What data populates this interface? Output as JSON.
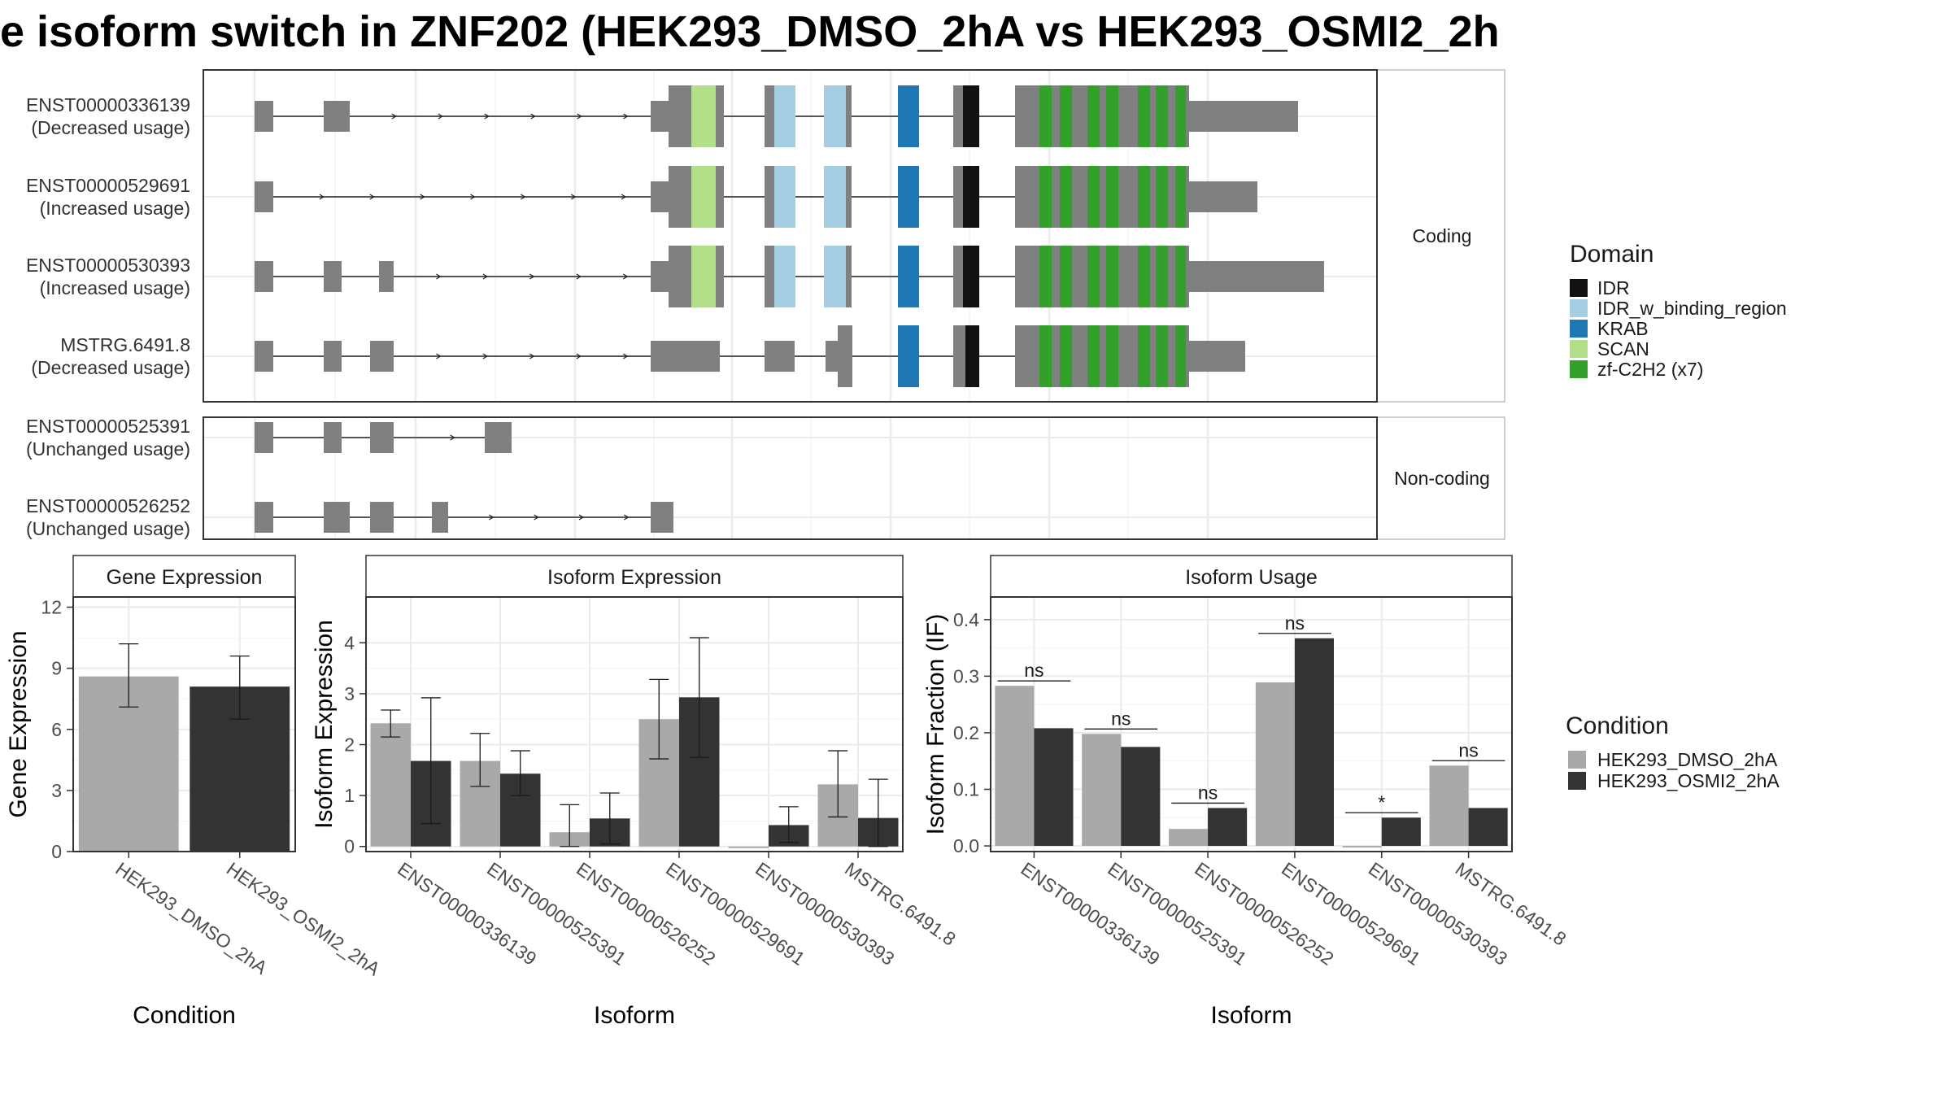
{
  "title": "e isoform switch in ZNF202 (HEK293_DMSO_2hA vs HEK293_OSMI2_2h",
  "structure": {
    "facets": [
      {
        "label": "Coding",
        "transcripts": [
          {
            "id": "ENST00000336139",
            "usage": "(Decreased usage)"
          },
          {
            "id": "ENST00000529691",
            "usage": "(Increased usage)"
          },
          {
            "id": "ENST00000530393",
            "usage": "(Increased usage)"
          },
          {
            "id": "MSTRG.6491.8",
            "usage": "(Decreased usage)"
          }
        ]
      },
      {
        "label": "Non-coding",
        "transcripts": [
          {
            "id": "ENST00000525391",
            "usage": "(Unchanged usage)"
          },
          {
            "id": "ENST00000526252",
            "usage": "(Unchanged usage)"
          }
        ]
      }
    ],
    "domain_legend_title": "Domain",
    "domains": [
      {
        "name": "IDR",
        "color": "#111111"
      },
      {
        "name": "IDR_w_binding_region",
        "color": "#a6cee3"
      },
      {
        "name": "KRAB",
        "color": "#1f78b4"
      },
      {
        "name": "SCAN",
        "color": "#b2df8a"
      },
      {
        "name": "zf-C2H2 (x7)",
        "color": "#33a02c"
      }
    ]
  },
  "colors": {
    "exon": "#808080",
    "condition_1": "#a9a9a9",
    "condition_2": "#333333"
  },
  "chart_data": [
    {
      "type": "bar",
      "title": "Gene Expression",
      "xlabel": "Condition",
      "ylabel": "Gene Expression",
      "ylim": [
        0,
        12.5
      ],
      "yticks": [
        0,
        3,
        6,
        9,
        12
      ],
      "categories": [
        "HEK293_DMSO_2hA",
        "HEK293_OSMI2_2hA"
      ],
      "values": [
        8.6,
        8.1
      ],
      "error_low": [
        7.1,
        6.5
      ],
      "error_high": [
        10.2,
        9.6
      ]
    },
    {
      "type": "bar",
      "title": "Isoform Expression",
      "xlabel": "Isoform",
      "ylabel": "Isoform Expression",
      "ylim": [
        -0.1,
        4.9
      ],
      "yticks": [
        0,
        1,
        2,
        3,
        4
      ],
      "categories": [
        "ENST00000336139",
        "ENST00000525391",
        "ENST00000526252",
        "ENST00000529691",
        "ENST00000530393",
        "MSTRG.6491.8"
      ],
      "series": [
        {
          "name": "HEK293_DMSO_2hA",
          "values": [
            2.42,
            1.68,
            0.28,
            2.5,
            0.0,
            1.22
          ],
          "error_low": [
            2.15,
            1.18,
            0.0,
            1.72,
            0.0,
            0.58
          ],
          "error_high": [
            2.68,
            2.22,
            0.82,
            3.28,
            0.0,
            1.88
          ]
        },
        {
          "name": "HEK293_OSMI2_2hA",
          "values": [
            1.68,
            1.43,
            0.55,
            2.93,
            0.42,
            0.56
          ],
          "error_low": [
            0.45,
            1.0,
            0.05,
            1.75,
            0.08,
            0.0
          ],
          "error_high": [
            2.92,
            1.88,
            1.05,
            4.1,
            0.78,
            1.32
          ]
        }
      ]
    },
    {
      "type": "bar",
      "title": "Isoform Usage",
      "xlabel": "Isoform",
      "ylabel": "Isoform Fraction (IF)",
      "ylim": [
        -0.01,
        0.44
      ],
      "yticks": [
        "0.0",
        "0.1",
        "0.2",
        "0.3",
        "0.4"
      ],
      "categories": [
        "ENST00000336139",
        "ENST00000525391",
        "ENST00000526252",
        "ENST00000529691",
        "ENST00000530393",
        "MSTRG.6491.8"
      ],
      "series": [
        {
          "name": "HEK293_DMSO_2hA",
          "values": [
            0.283,
            0.198,
            0.03,
            0.289,
            0.0,
            0.142
          ]
        },
        {
          "name": "HEK293_OSMI2_2hA",
          "values": [
            0.208,
            0.175,
            0.067,
            0.367,
            0.05,
            0.067
          ]
        }
      ],
      "significance": [
        "ns",
        "ns",
        "ns",
        "ns",
        "*",
        "ns"
      ]
    }
  ],
  "condition_legend": {
    "title": "Condition",
    "items": [
      "HEK293_DMSO_2hA",
      "HEK293_OSMI2_2hA"
    ]
  }
}
